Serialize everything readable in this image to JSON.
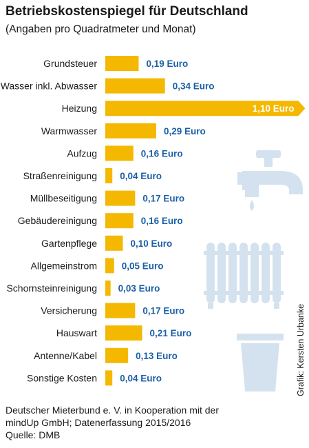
{
  "header": {
    "title": "Betriebskostenspiegel für Deutschland",
    "subtitle": "(Angaben pro Quadratmeter und Monat)"
  },
  "footer": {
    "line1": "Deutscher Mieterbund e. V. in Kooperation mit der",
    "line2": "mindUp GmbH; Datenerfassung 2015/2016",
    "line3": "Quelle: DMB"
  },
  "credit": "Grafik: Kersten Urbanke",
  "colors": {
    "bar": "#f5b800",
    "value_text": "#1b5fa8",
    "value_text_inside": "#ffffff",
    "icon": "#d4e2ef"
  },
  "icons": [
    "faucet-icon",
    "radiator-icon",
    "bucket-icon"
  ],
  "chart_data": {
    "type": "bar",
    "orientation": "horizontal",
    "categories": [
      "Grundsteuer",
      "Wasser inkl. Abwasser",
      "Heizung",
      "Warmwasser",
      "Aufzug",
      "Straßenreinigung",
      "Müllbeseitigung",
      "Gebäudereinigung",
      "Gartenpflege",
      "Allgemeinstrom",
      "Schornsteinreinigung",
      "Versicherung",
      "Hauswart",
      "Antenne/Kabel",
      "Sonstige Kosten"
    ],
    "values": [
      0.19,
      0.34,
      1.1,
      0.29,
      0.16,
      0.04,
      0.17,
      0.16,
      0.1,
      0.05,
      0.03,
      0.17,
      0.21,
      0.13,
      0.04
    ],
    "value_labels": [
      "0,19 Euro",
      "0,34 Euro",
      "1,10 Euro",
      "0,29 Euro",
      "0,16 Euro",
      "0,04 Euro",
      "0,17 Euro",
      "0,16 Euro",
      "0,10 Euro",
      "0,05 Euro",
      "0,03 Euro",
      "0,17 Euro",
      "0,21 Euro",
      "0,13 Euro",
      "0,04 Euro"
    ],
    "value_label_inside_index": 2,
    "title": "",
    "xlabel": "",
    "ylabel": "",
    "grid": false,
    "legend": "none"
  }
}
